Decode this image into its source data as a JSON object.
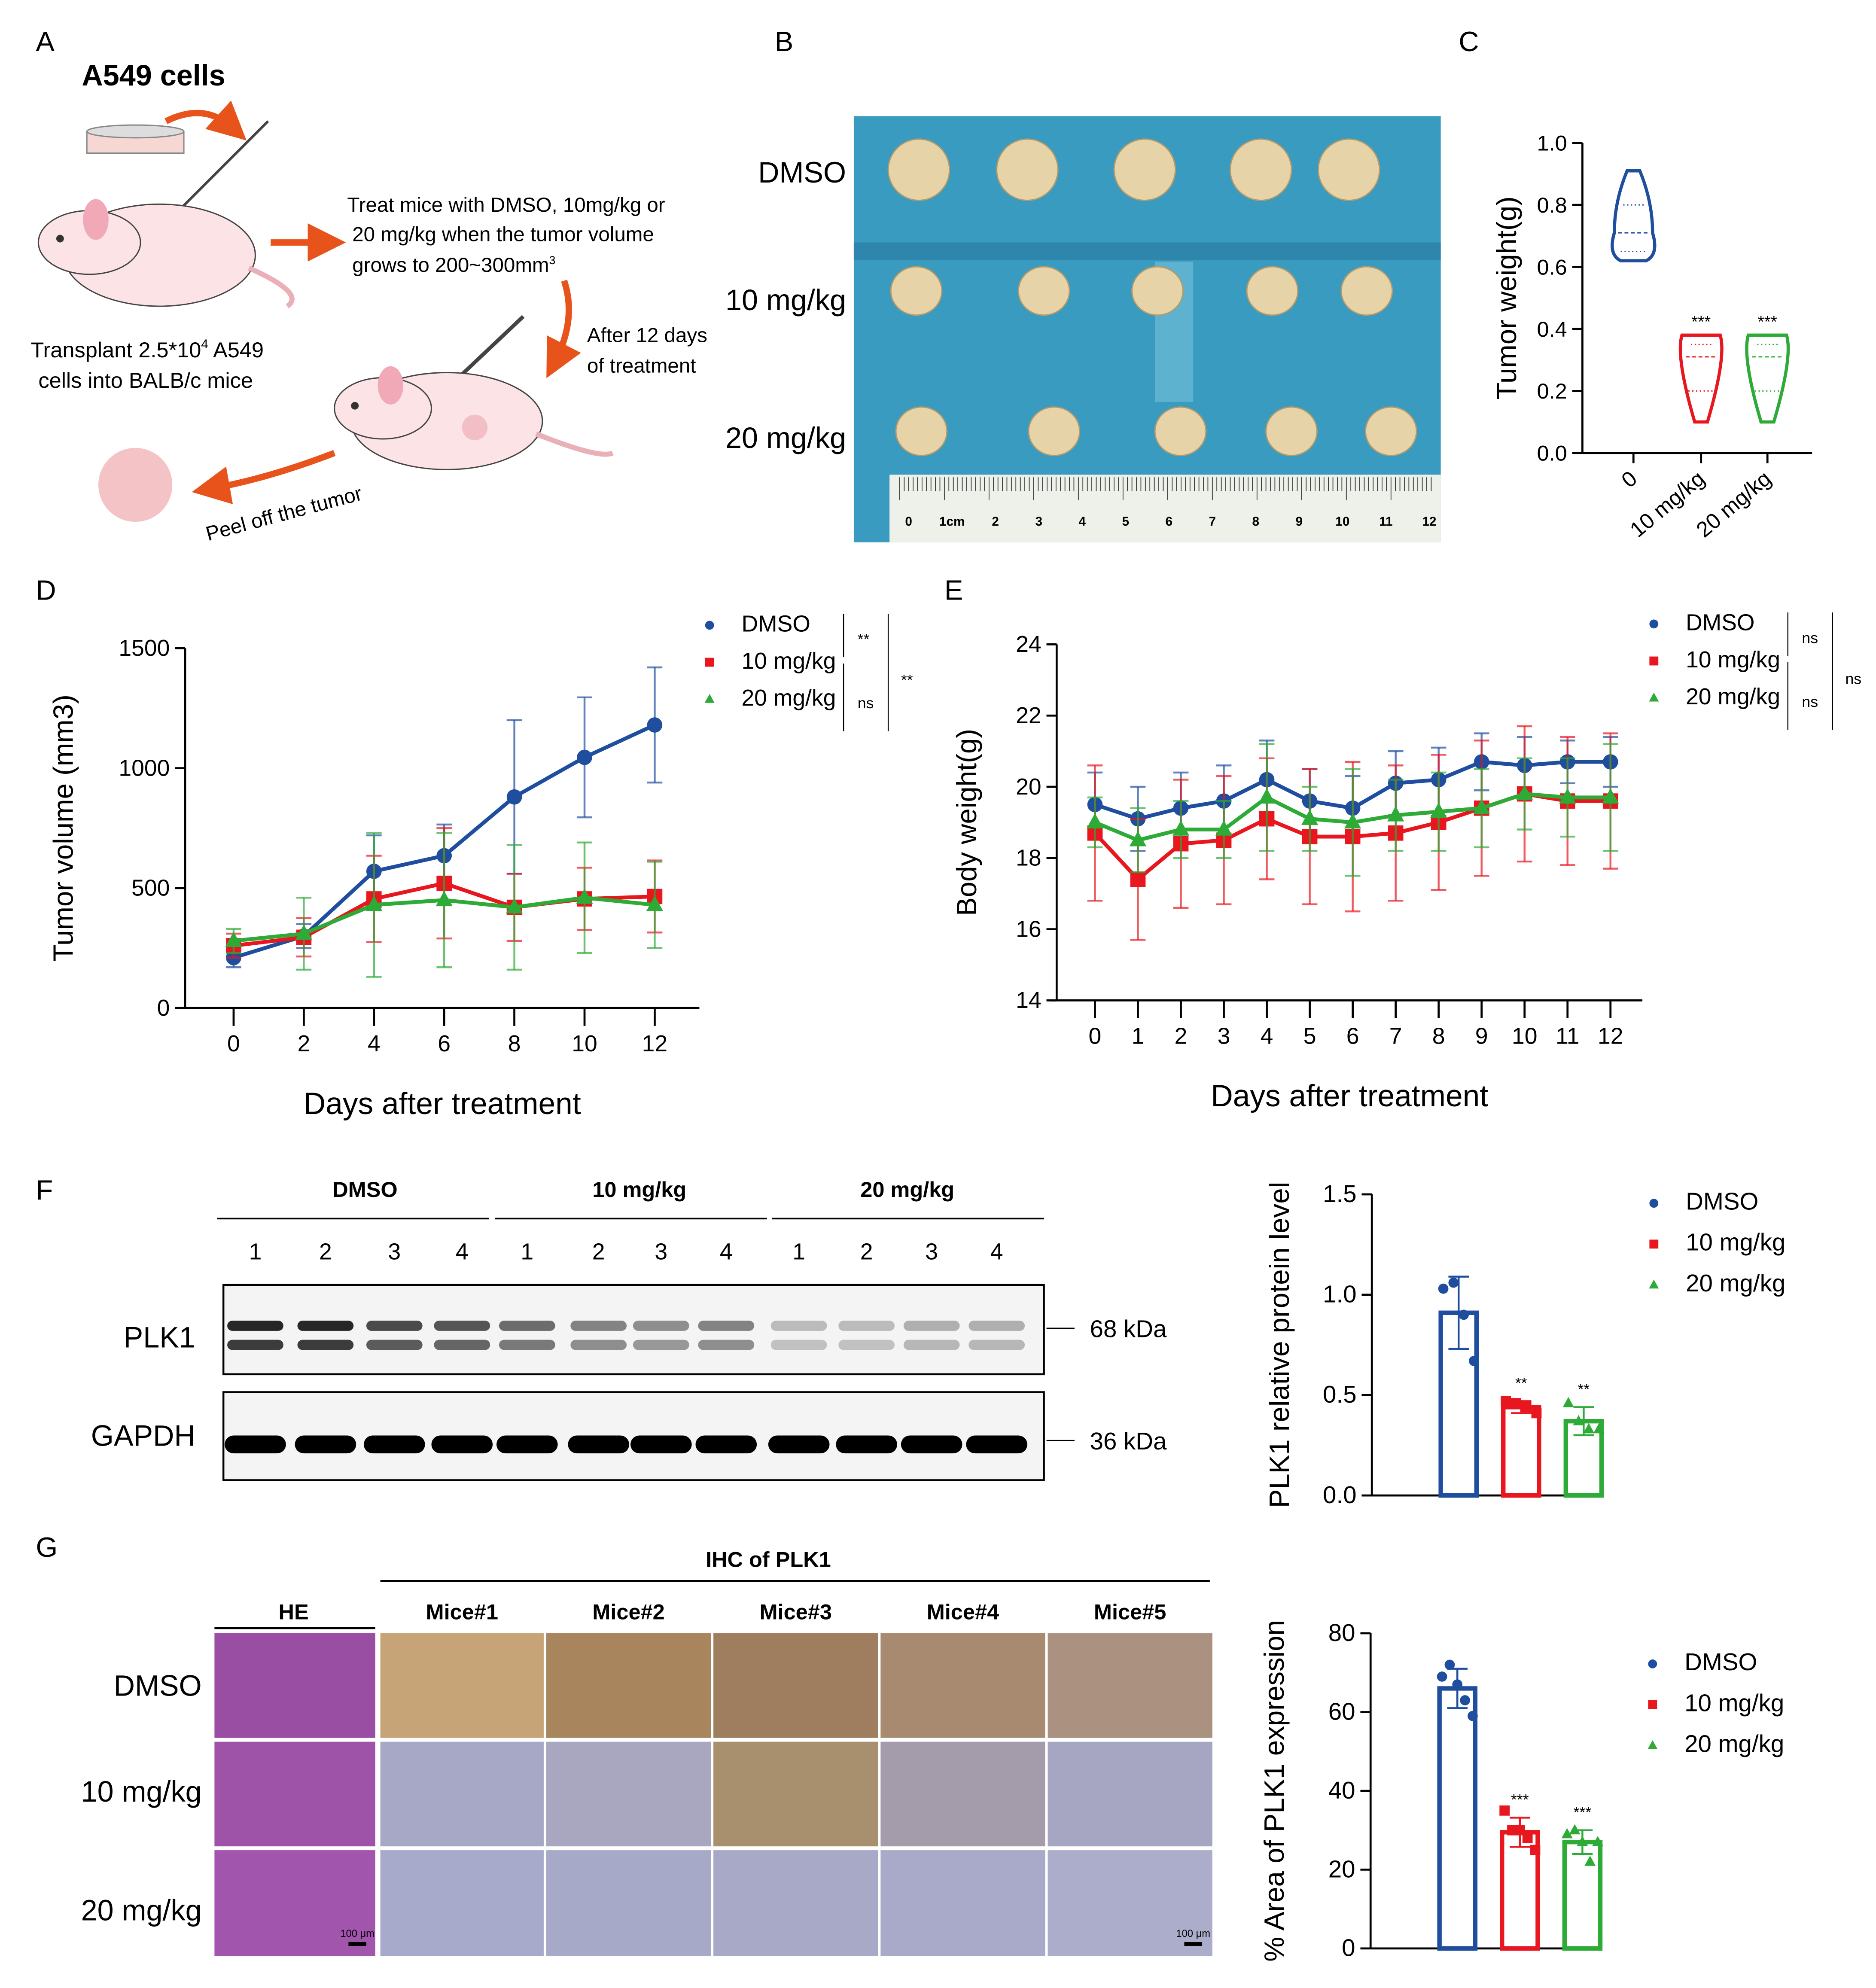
{
  "panel_letters": [
    "A",
    "B",
    "C",
    "D",
    "E",
    "F",
    "G"
  ],
  "colors": {
    "dmso": "#1f4e9f",
    "mg10": "#e8161e",
    "mg20": "#2eaa37",
    "arrow": "#e8531b",
    "mouse": "#fbe3e6",
    "ear": "#f1a9b8",
    "photo_bg": "#3a9bc0"
  },
  "panelA": {
    "title": "A549 cells",
    "transplant_line1": "Transplant 2.5*10",
    "transplant_sup": "4",
    "transplant_line1b": " A549",
    "transplant_line2": "cells into BALB/c mice",
    "treat_line1": "Treat mice with DMSO, 10mg/kg or",
    "treat_line2": "20 mg/kg when the tumor volume",
    "treat_line3": "grows to 200~300mm",
    "treat_sup": "3",
    "after_line1": "After 12 days",
    "after_line2": "of treatment",
    "peel": "Peel off the tumor"
  },
  "panelB": {
    "rows": [
      "DMSO",
      "10 mg/kg",
      "20 mg/kg"
    ],
    "ruler_labels": [
      "0",
      "1cm",
      "2",
      "3",
      "4",
      "5",
      "6",
      "7",
      "8",
      "9",
      "10",
      "11",
      "12"
    ]
  },
  "legend": [
    "DMSO",
    "10 mg/kg",
    "20 mg/kg"
  ],
  "chart_data": [
    {
      "id": "C",
      "type": "violin",
      "ylabel": "Tumor weight(g)",
      "ylim": [
        0,
        1.0
      ],
      "yticks": [
        "0.0",
        "0.2",
        "0.4",
        "0.6",
        "0.8",
        "1.0"
      ],
      "categories": [
        "0",
        "10 mg/kg",
        "20 mg/kg"
      ],
      "series": [
        {
          "min": 0.62,
          "max": 0.91,
          "median": 0.71,
          "q1": 0.65,
          "q3": 0.8,
          "sig": ""
        },
        {
          "min": 0.1,
          "max": 0.38,
          "median": 0.31,
          "q1": 0.2,
          "q3": 0.35,
          "sig": "***"
        },
        {
          "min": 0.1,
          "max": 0.38,
          "median": 0.31,
          "q1": 0.2,
          "q3": 0.35,
          "sig": "***"
        }
      ]
    },
    {
      "id": "D",
      "type": "line",
      "xlabel": "Days after treatment",
      "ylabel": "Tumor volume (mm3)",
      "x": [
        0,
        2,
        4,
        6,
        8,
        10,
        12
      ],
      "ylim": [
        0,
        1500
      ],
      "yticks": [
        "0",
        "500",
        "1000",
        "1500"
      ],
      "series": [
        {
          "name": "DMSO",
          "values": [
            210,
            300,
            570,
            635,
            880,
            1045,
            1180
          ],
          "err": [
            40,
            50,
            150,
            130,
            320,
            250,
            240
          ]
        },
        {
          "name": "10 mg/kg",
          "values": [
            260,
            295,
            455,
            520,
            420,
            455,
            465
          ],
          "err": [
            50,
            80,
            180,
            230,
            140,
            130,
            150
          ]
        },
        {
          "name": "20 mg/kg",
          "values": [
            280,
            310,
            430,
            450,
            420,
            460,
            430
          ],
          "err": [
            50,
            150,
            300,
            280,
            260,
            230,
            180
          ]
        }
      ],
      "significance": [
        "**",
        "ns",
        "**"
      ]
    },
    {
      "id": "E",
      "type": "line",
      "xlabel": "Days after treatment",
      "ylabel": "Body weight(g)",
      "x": [
        0,
        1,
        2,
        3,
        4,
        5,
        6,
        7,
        8,
        9,
        10,
        11,
        12
      ],
      "ylim": [
        14,
        24
      ],
      "yticks": [
        "14",
        "16",
        "18",
        "20",
        "22",
        "24"
      ],
      "series": [
        {
          "name": "DMSO",
          "values": [
            19.5,
            19.1,
            19.4,
            19.6,
            20.2,
            19.6,
            19.4,
            20.1,
            20.2,
            20.7,
            20.6,
            20.7,
            20.7
          ],
          "err": [
            0.9,
            0.9,
            1.0,
            1.0,
            1.1,
            0.9,
            0.9,
            0.9,
            0.9,
            0.8,
            0.8,
            0.6,
            0.7
          ]
        },
        {
          "name": "10 mg/kg",
          "values": [
            18.7,
            17.4,
            18.4,
            18.5,
            19.1,
            18.6,
            18.6,
            18.7,
            19.0,
            19.4,
            19.8,
            19.6,
            19.6
          ],
          "err": [
            1.9,
            1.7,
            1.8,
            1.8,
            1.7,
            1.9,
            2.1,
            1.9,
            1.9,
            1.9,
            1.9,
            1.8,
            1.9
          ]
        },
        {
          "name": "20 mg/kg",
          "values": [
            19.0,
            18.5,
            18.8,
            18.8,
            19.7,
            19.1,
            19.0,
            19.2,
            19.3,
            19.4,
            19.8,
            19.7,
            19.7
          ],
          "err": [
            0.7,
            0.9,
            0.8,
            0.8,
            1.5,
            0.9,
            1.5,
            1.0,
            1.1,
            1.1,
            1.0,
            1.1,
            1.5
          ]
        }
      ],
      "significance": [
        "ns",
        "ns",
        "ns"
      ]
    },
    {
      "id": "F-bar",
      "type": "bar",
      "ylabel": "PLK1 relative protein level",
      "ylim": [
        0,
        1.5
      ],
      "yticks": [
        "0.0",
        "0.5",
        "1.0",
        "1.5"
      ],
      "categories": [
        "DMSO",
        "10 mg/kg",
        "20 mg/kg"
      ],
      "values": [
        0.91,
        0.44,
        0.37
      ],
      "err": [
        0.18,
        0.03,
        0.07
      ],
      "points": [
        [
          1.03,
          1.06,
          0.9,
          0.67
        ],
        [
          0.47,
          0.46,
          0.44,
          0.41
        ],
        [
          0.46,
          0.37,
          0.33,
          0.33
        ]
      ],
      "sig": [
        "",
        "**",
        "**"
      ]
    },
    {
      "id": "G-bar",
      "type": "bar",
      "ylabel": "% Area of PLK1 expression",
      "ylim": [
        0,
        80
      ],
      "yticks": [
        "0",
        "20",
        "40",
        "60",
        "80"
      ],
      "categories": [
        "DMSO",
        "10 mg/kg",
        "20 mg/kg"
      ],
      "values": [
        66,
        29.5,
        27
      ],
      "err": [
        5,
        3.7,
        3
      ],
      "points": [
        [
          69,
          72,
          67,
          63,
          59
        ],
        [
          35,
          30,
          30,
          28,
          25
        ],
        [
          29,
          30,
          27,
          22,
          27
        ]
      ],
      "sig": [
        "",
        "***",
        "***"
      ]
    }
  ],
  "panelF": {
    "groups": [
      "DMSO",
      "10 mg/kg",
      "20 mg/kg"
    ],
    "lanes": [
      "1",
      "2",
      "3",
      "4",
      "1",
      "2",
      "3",
      "4",
      "1",
      "2",
      "3",
      "4"
    ],
    "bands": [
      {
        "label": "PLK1",
        "size": "68 kDa",
        "intensity": [
          0.9,
          0.9,
          0.75,
          0.7,
          0.6,
          0.5,
          0.45,
          0.5,
          0.25,
          0.25,
          0.3,
          0.3
        ]
      },
      {
        "label": "GAPDH",
        "size": "36 kDa",
        "intensity": [
          1,
          1,
          1,
          1,
          1,
          1,
          1,
          1,
          1,
          1,
          1,
          1
        ]
      }
    ]
  },
  "panelG": {
    "he_label": "HE",
    "ihc_label": "IHC of PLK1",
    "mice": [
      "Mice#1",
      "Mice#2",
      "Mice#3",
      "Mice#4",
      "Mice#5"
    ],
    "rows": [
      "DMSO",
      "10 mg/kg",
      "20 mg/kg"
    ],
    "scale_bar": "100 μm"
  }
}
